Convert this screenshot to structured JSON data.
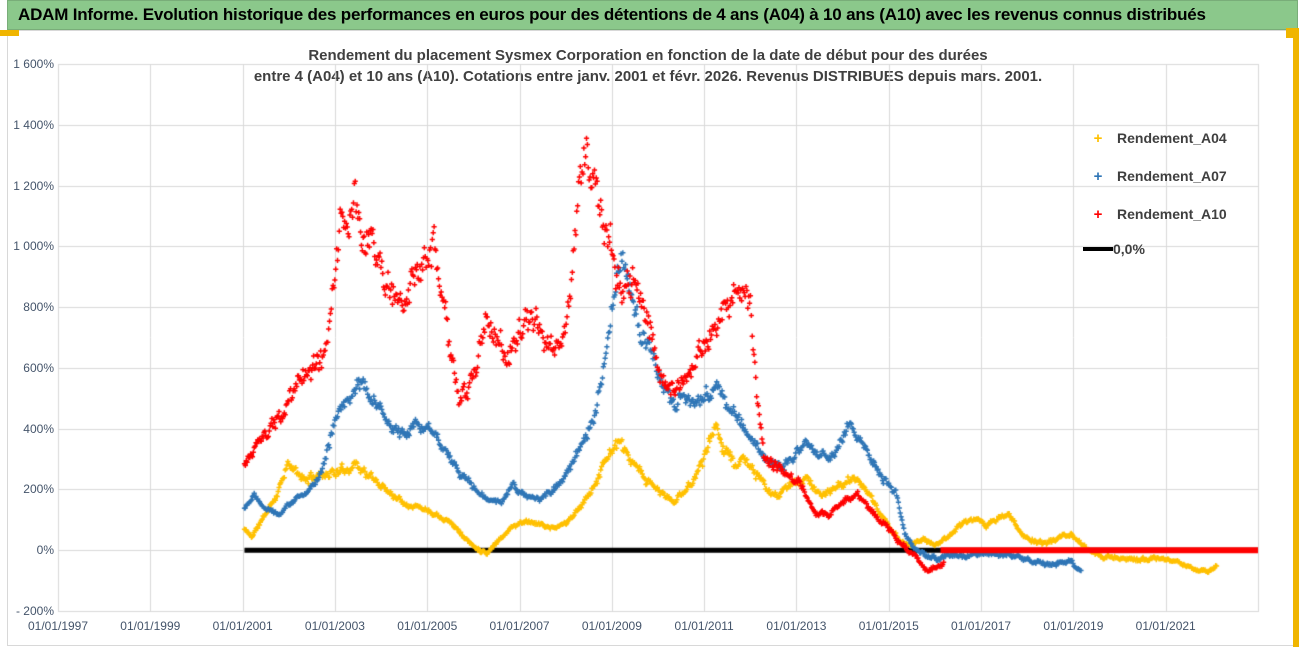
{
  "header": {
    "title": "ADAM Informe. Evolution historique des performances en euros pour des détentions de 4 ans (A04) à 10 ans (A10) avec les revenus connus distribués",
    "bg_color": "#8bc88b"
  },
  "chart_data": {
    "type": "scatter",
    "title_line1": "Rendement du placement Sysmex Corporation en fonction de la date de début pour des durées",
    "title_line2": "entre 4 (A04) et 10 ans (A10). Cotations entre janv. 2001 et févr. 2026. Revenus DISTRIBUES depuis mars. 2001.",
    "grid": true,
    "legend_position": "right",
    "x_axis": {
      "range": [
        1997.0,
        2023.0
      ],
      "ticks": [
        {
          "label": "01/01/1997",
          "year": 1997
        },
        {
          "label": "01/01/1999",
          "year": 1999
        },
        {
          "label": "01/01/2001",
          "year": 2001
        },
        {
          "label": "01/01/2003",
          "year": 2003
        },
        {
          "label": "01/01/2005",
          "year": 2005
        },
        {
          "label": "01/01/2007",
          "year": 2007
        },
        {
          "label": "01/01/2009",
          "year": 2009
        },
        {
          "label": "01/01/2011",
          "year": 2011
        },
        {
          "label": "01/01/2013",
          "year": 2013
        },
        {
          "label": "01/01/2015",
          "year": 2015
        },
        {
          "label": "01/01/2017",
          "year": 2017
        },
        {
          "label": "01/01/2019",
          "year": 2019
        },
        {
          "label": "01/01/2021",
          "year": 2021
        }
      ]
    },
    "y_axis": {
      "range": [
        -200,
        1600
      ],
      "ticks": [
        {
          "label": "1 600%",
          "value": 1600
        },
        {
          "label": "1 400%",
          "value": 1400
        },
        {
          "label": "1 200%",
          "value": 1200
        },
        {
          "label": "1 000%",
          "value": 1000
        },
        {
          "label": "800%",
          "value": 800
        },
        {
          "label": "600%",
          "value": 600
        },
        {
          "label": "400%",
          "value": 400
        },
        {
          "label": "200%",
          "value": 200
        },
        {
          "label": "0%",
          "value": 0
        },
        {
          "label": "- 200%",
          "value": -200
        }
      ]
    },
    "zero_line": {
      "label": "0,0%",
      "color": "#000000",
      "from": 2001.04,
      "to": 2023.0,
      "value": 0
    },
    "series": [
      {
        "name": "Rendement_A04",
        "color": "#ffc000",
        "marker": "plus",
        "start": 2001.04,
        "end": 2022.12,
        "noise_factor": 0.08,
        "noise_min": 9,
        "seed": 11,
        "keypoints": [
          [
            2001.0,
            75
          ],
          [
            2001.2,
            45
          ],
          [
            2001.5,
            120
          ],
          [
            2001.75,
            185
          ],
          [
            2001.95,
            280
          ],
          [
            2002.1,
            265
          ],
          [
            2002.35,
            230
          ],
          [
            2002.65,
            250
          ],
          [
            2002.95,
            255
          ],
          [
            2003.2,
            262
          ],
          [
            2003.45,
            288
          ],
          [
            2003.7,
            248
          ],
          [
            2004.0,
            215
          ],
          [
            2004.3,
            178
          ],
          [
            2004.6,
            150
          ],
          [
            2004.9,
            140
          ],
          [
            2005.2,
            118
          ],
          [
            2005.5,
            95
          ],
          [
            2005.8,
            42
          ],
          [
            2006.05,
            8
          ],
          [
            2006.3,
            -8
          ],
          [
            2006.55,
            35
          ],
          [
            2006.85,
            78
          ],
          [
            2007.15,
            98
          ],
          [
            2007.45,
            85
          ],
          [
            2007.75,
            70
          ],
          [
            2008.05,
            95
          ],
          [
            2008.35,
            145
          ],
          [
            2008.65,
            225
          ],
          [
            2008.95,
            325
          ],
          [
            2009.15,
            355
          ],
          [
            2009.35,
            305
          ],
          [
            2009.6,
            255
          ],
          [
            2009.85,
            215
          ],
          [
            2010.1,
            185
          ],
          [
            2010.35,
            158
          ],
          [
            2010.6,
            198
          ],
          [
            2010.85,
            255
          ],
          [
            2011.05,
            330
          ],
          [
            2011.25,
            405
          ],
          [
            2011.45,
            340
          ],
          [
            2011.65,
            280
          ],
          [
            2011.85,
            298
          ],
          [
            2012.1,
            258
          ],
          [
            2012.35,
            198
          ],
          [
            2012.6,
            178
          ],
          [
            2012.9,
            218
          ],
          [
            2013.2,
            238
          ],
          [
            2013.5,
            182
          ],
          [
            2013.8,
            198
          ],
          [
            2014.1,
            228
          ],
          [
            2014.4,
            228
          ],
          [
            2014.7,
            148
          ],
          [
            2015.0,
            78
          ],
          [
            2015.25,
            28
          ],
          [
            2015.5,
            20
          ],
          [
            2015.75,
            35
          ],
          [
            2016.0,
            18
          ],
          [
            2016.3,
            48
          ],
          [
            2016.6,
            88
          ],
          [
            2016.9,
            108
          ],
          [
            2017.1,
            78
          ],
          [
            2017.35,
            105
          ],
          [
            2017.6,
            118
          ],
          [
            2017.85,
            58
          ],
          [
            2018.1,
            32
          ],
          [
            2018.4,
            22
          ],
          [
            2018.7,
            42
          ],
          [
            2018.95,
            52
          ],
          [
            2019.25,
            8
          ],
          [
            2019.55,
            -18
          ],
          [
            2019.85,
            -22
          ],
          [
            2020.15,
            -28
          ],
          [
            2020.45,
            -32
          ],
          [
            2020.75,
            -25
          ],
          [
            2021.05,
            -35
          ],
          [
            2021.35,
            -45
          ],
          [
            2021.65,
            -62
          ],
          [
            2021.9,
            -70
          ],
          [
            2022.12,
            -55
          ]
        ]
      },
      {
        "name": "Rendement_A07",
        "color": "#2e75b6",
        "marker": "plus",
        "start": 2001.04,
        "end": 2019.18,
        "noise_factor": 0.07,
        "noise_min": 10,
        "seed": 22,
        "keypoints": [
          [
            2001.0,
            130
          ],
          [
            2001.25,
            185
          ],
          [
            2001.5,
            140
          ],
          [
            2001.8,
            120
          ],
          [
            2002.1,
            165
          ],
          [
            2002.4,
            185
          ],
          [
            2002.7,
            260
          ],
          [
            2002.95,
            400
          ],
          [
            2003.15,
            470
          ],
          [
            2003.35,
            520
          ],
          [
            2003.55,
            560
          ],
          [
            2003.75,
            510
          ],
          [
            2004.0,
            450
          ],
          [
            2004.3,
            385
          ],
          [
            2004.6,
            400
          ],
          [
            2004.9,
            415
          ],
          [
            2005.1,
            395
          ],
          [
            2005.4,
            335
          ],
          [
            2005.7,
            255
          ],
          [
            2006.0,
            205
          ],
          [
            2006.3,
            165
          ],
          [
            2006.6,
            155
          ],
          [
            2006.85,
            215
          ],
          [
            2007.1,
            180
          ],
          [
            2007.4,
            165
          ],
          [
            2007.7,
            195
          ],
          [
            2008.0,
            255
          ],
          [
            2008.3,
            325
          ],
          [
            2008.6,
            420
          ],
          [
            2008.8,
            560
          ],
          [
            2009.0,
            780
          ],
          [
            2009.2,
            970
          ],
          [
            2009.35,
            900
          ],
          [
            2009.5,
            800
          ],
          [
            2009.7,
            690
          ],
          [
            2009.9,
            620
          ],
          [
            2010.1,
            530
          ],
          [
            2010.35,
            470
          ],
          [
            2010.6,
            515
          ],
          [
            2010.85,
            495
          ],
          [
            2011.1,
            520
          ],
          [
            2011.3,
            535
          ],
          [
            2011.55,
            470
          ],
          [
            2011.8,
            420
          ],
          [
            2012.1,
            345
          ],
          [
            2012.4,
            285
          ],
          [
            2012.7,
            280
          ],
          [
            2013.0,
            320
          ],
          [
            2013.25,
            355
          ],
          [
            2013.5,
            310
          ],
          [
            2013.75,
            300
          ],
          [
            2014.0,
            370
          ],
          [
            2014.15,
            420
          ],
          [
            2014.35,
            365
          ],
          [
            2014.6,
            300
          ],
          [
            2014.9,
            235
          ],
          [
            2015.15,
            190
          ],
          [
            2015.35,
            55
          ],
          [
            2015.55,
            5
          ],
          [
            2015.8,
            -20
          ],
          [
            2016.1,
            -28
          ],
          [
            2016.4,
            -12
          ],
          [
            2016.7,
            -20
          ],
          [
            2017.0,
            -8
          ],
          [
            2017.3,
            -12
          ],
          [
            2017.6,
            -18
          ],
          [
            2017.9,
            -28
          ],
          [
            2018.2,
            -38
          ],
          [
            2018.5,
            -52
          ],
          [
            2018.75,
            -38
          ],
          [
            2018.95,
            -35
          ],
          [
            2019.05,
            -60
          ],
          [
            2019.18,
            -68
          ]
        ]
      },
      {
        "name": "Rendement_A10",
        "color": "#ff0000",
        "marker": "plus",
        "start": 2001.04,
        "end": 2016.2,
        "noise_factor": 0.085,
        "noise_min": 12,
        "seed": 33,
        "flat_zero_from": 2016.12,
        "flat_zero_to": 2023.0,
        "keypoints": [
          [
            2001.0,
            270
          ],
          [
            2001.3,
            340
          ],
          [
            2001.6,
            400
          ],
          [
            2001.9,
            450
          ],
          [
            2002.2,
            560
          ],
          [
            2002.5,
            600
          ],
          [
            2002.8,
            650
          ],
          [
            2003.0,
            900
          ],
          [
            2003.15,
            1130
          ],
          [
            2003.3,
            1060
          ],
          [
            2003.45,
            1170
          ],
          [
            2003.6,
            960
          ],
          [
            2003.8,
            1010
          ],
          [
            2004.0,
            930
          ],
          [
            2004.2,
            860
          ],
          [
            2004.5,
            810
          ],
          [
            2004.8,
            890
          ],
          [
            2005.0,
            940
          ],
          [
            2005.15,
            990
          ],
          [
            2005.3,
            850
          ],
          [
            2005.5,
            640
          ],
          [
            2005.7,
            500
          ],
          [
            2005.9,
            520
          ],
          [
            2006.1,
            640
          ],
          [
            2006.3,
            760
          ],
          [
            2006.5,
            700
          ],
          [
            2006.7,
            640
          ],
          [
            2006.9,
            690
          ],
          [
            2007.1,
            760
          ],
          [
            2007.4,
            720
          ],
          [
            2007.7,
            660
          ],
          [
            2007.9,
            680
          ],
          [
            2008.1,
            820
          ],
          [
            2008.3,
            1180
          ],
          [
            2008.45,
            1300
          ],
          [
            2008.6,
            1220
          ],
          [
            2008.75,
            1130
          ],
          [
            2008.9,
            1050
          ],
          [
            2009.05,
            950
          ],
          [
            2009.25,
            840
          ],
          [
            2009.45,
            880
          ],
          [
            2009.65,
            840
          ],
          [
            2009.85,
            700
          ],
          [
            2010.1,
            570
          ],
          [
            2010.35,
            520
          ],
          [
            2010.6,
            555
          ],
          [
            2010.85,
            620
          ],
          [
            2011.1,
            690
          ],
          [
            2011.35,
            760
          ],
          [
            2011.6,
            840
          ],
          [
            2011.85,
            880
          ],
          [
            2012.0,
            800
          ],
          [
            2012.15,
            500
          ],
          [
            2012.3,
            300
          ],
          [
            2012.5,
            280
          ],
          [
            2012.8,
            255
          ],
          [
            2013.1,
            215
          ],
          [
            2013.4,
            125
          ],
          [
            2013.7,
            115
          ],
          [
            2014.0,
            160
          ],
          [
            2014.3,
            185
          ],
          [
            2014.6,
            135
          ],
          [
            2014.9,
            85
          ],
          [
            2015.2,
            35
          ],
          [
            2015.5,
            -15
          ],
          [
            2015.8,
            -55
          ],
          [
            2016.0,
            -65
          ],
          [
            2016.2,
            -40
          ]
        ]
      }
    ],
    "legend": {
      "items": [
        "Rendement_A04",
        "Rendement_A07",
        "Rendement_A10",
        "0,0%"
      ]
    }
  }
}
